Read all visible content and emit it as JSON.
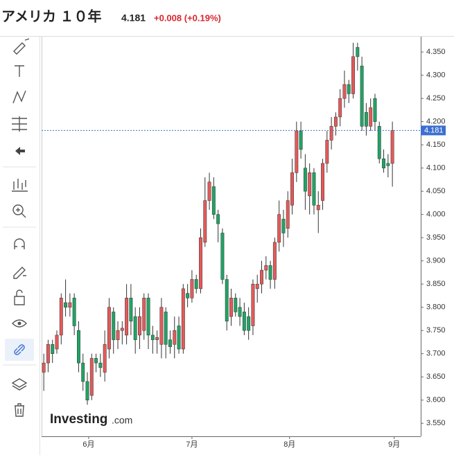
{
  "chart_data": {
    "type": "candlestick",
    "title": "アメリカ １０年",
    "last_price": 4.181,
    "change": "+0.008 (+0.19%)",
    "watermark": [
      "Investing",
      ".com"
    ],
    "up_color": "#e35a5a",
    "down_color": "#21a366",
    "price_line_color": "#3c6fd1",
    "open": [
      3.66,
      3.68,
      3.72,
      3.71,
      3.74,
      3.81,
      3.8,
      3.82,
      3.75,
      3.68,
      3.64,
      3.61,
      3.69,
      3.68,
      3.66,
      3.71,
      3.79,
      3.73,
      3.75,
      3.74,
      3.82,
      3.78,
      3.74,
      3.75,
      3.82,
      3.74,
      3.73,
      3.72,
      3.79,
      3.73,
      3.72,
      3.76,
      3.71,
      3.83,
      3.82,
      3.86,
      3.84,
      3.94,
      4.03,
      4.06,
      4.0,
      3.96,
      3.86,
      3.78,
      3.82,
      3.8,
      3.79,
      3.78,
      3.76,
      3.84,
      3.85,
      3.88,
      3.89,
      3.86,
      3.94,
      3.99,
      3.97,
      4.02,
      4.09,
      4.18,
      4.1,
      4.04,
      4.09,
      4.01,
      4.03,
      4.11,
      4.16,
      4.19,
      4.21,
      4.25,
      4.28,
      4.26,
      4.36,
      4.32,
      4.22,
      4.19,
      4.25,
      4.19,
      4.12,
      4.11,
      4.11
    ],
    "high": [
      3.7,
      3.73,
      3.73,
      3.75,
      3.83,
      3.86,
      3.83,
      3.83,
      3.77,
      3.7,
      3.66,
      3.7,
      3.7,
      3.7,
      3.75,
      3.82,
      3.8,
      3.77,
      3.77,
      3.85,
      3.85,
      3.8,
      3.8,
      3.83,
      3.83,
      3.76,
      3.75,
      3.82,
      3.8,
      3.75,
      3.78,
      3.78,
      3.85,
      3.85,
      3.88,
      3.87,
      3.97,
      4.08,
      4.09,
      4.08,
      4.01,
      3.97,
      3.87,
      3.84,
      3.83,
      3.82,
      3.81,
      3.8,
      3.86,
      3.87,
      3.9,
      3.91,
      3.9,
      3.95,
      4.03,
      4.01,
      4.05,
      4.12,
      4.2,
      4.2,
      4.13,
      4.11,
      4.1,
      4.05,
      4.12,
      4.18,
      4.21,
      4.22,
      4.27,
      4.31,
      4.29,
      4.37,
      4.37,
      4.34,
      4.24,
      4.25,
      4.26,
      4.2,
      4.14,
      4.13,
      4.2
    ],
    "low": [
      3.62,
      3.66,
      3.68,
      3.7,
      3.72,
      3.78,
      3.78,
      3.74,
      3.66,
      3.62,
      3.59,
      3.6,
      3.66,
      3.65,
      3.64,
      3.69,
      3.7,
      3.71,
      3.72,
      3.72,
      3.74,
      3.7,
      3.71,
      3.73,
      3.71,
      3.7,
      3.7,
      3.69,
      3.69,
      3.7,
      3.69,
      3.7,
      3.7,
      3.8,
      3.81,
      3.83,
      3.83,
      3.93,
      4.01,
      3.99,
      3.94,
      3.85,
      3.75,
      3.76,
      3.78,
      3.76,
      3.74,
      3.73,
      3.74,
      3.81,
      3.83,
      3.86,
      3.84,
      3.84,
      3.92,
      3.93,
      3.95,
      4.0,
      4.07,
      4.12,
      4.01,
      4.0,
      4.0,
      3.96,
      4.01,
      4.09,
      4.14,
      4.17,
      4.19,
      4.23,
      4.24,
      4.25,
      4.31,
      4.18,
      4.17,
      4.18,
      4.18,
      4.11,
      4.09,
      4.08,
      4.06
    ],
    "close": [
      3.68,
      3.72,
      3.7,
      3.74,
      3.82,
      3.8,
      3.81,
      3.76,
      3.68,
      3.64,
      3.6,
      3.69,
      3.68,
      3.67,
      3.72,
      3.8,
      3.73,
      3.75,
      3.755,
      3.82,
      3.77,
      3.73,
      3.78,
      3.82,
      3.74,
      3.73,
      3.735,
      3.8,
      3.72,
      3.715,
      3.75,
      3.71,
      3.84,
      3.82,
      3.86,
      3.84,
      3.95,
      4.03,
      4.07,
      4.0,
      3.98,
      3.86,
      3.77,
      3.82,
      3.79,
      3.78,
      3.75,
      3.75,
      3.85,
      3.85,
      3.88,
      3.89,
      3.86,
      3.94,
      4.0,
      3.96,
      4.03,
      4.09,
      4.18,
      4.14,
      4.05,
      4.09,
      4.02,
      4.02,
      4.11,
      4.16,
      4.19,
      4.21,
      4.25,
      4.28,
      4.26,
      4.34,
      4.34,
      4.19,
      4.19,
      4.23,
      4.2,
      4.12,
      4.1,
      4.105,
      4.181
    ],
    "xlim": [
      -0.5,
      86.5
    ],
    "xticks": [
      {
        "value": 10.3,
        "label": "6月"
      },
      {
        "value": 34,
        "label": "7月"
      },
      {
        "value": 56.4,
        "label": "8月"
      },
      {
        "value": 80.4,
        "label": "9月"
      }
    ],
    "ylim": [
      3.522,
      4.383
    ],
    "yticks": [
      {
        "value": 3.55,
        "label": "3.550"
      },
      {
        "value": 3.6,
        "label": "3.600"
      },
      {
        "value": 3.65,
        "label": "3.650"
      },
      {
        "value": 3.7,
        "label": "3.700"
      },
      {
        "value": 3.75,
        "label": "3.750"
      },
      {
        "value": 3.8,
        "label": "3.800"
      },
      {
        "value": 3.85,
        "label": "3.850"
      },
      {
        "value": 3.9,
        "label": "3.900"
      },
      {
        "value": 3.95,
        "label": "3.950"
      },
      {
        "value": 4.0,
        "label": "4.000"
      },
      {
        "value": 4.05,
        "label": "4.050"
      },
      {
        "value": 4.1,
        "label": "4.100"
      },
      {
        "value": 4.15,
        "label": "4.150"
      },
      {
        "value": 4.2,
        "label": "4.200"
      },
      {
        "value": 4.25,
        "label": "4.250"
      },
      {
        "value": 4.3,
        "label": "4.300"
      },
      {
        "value": 4.35,
        "label": "4.350"
      }
    ]
  }
}
